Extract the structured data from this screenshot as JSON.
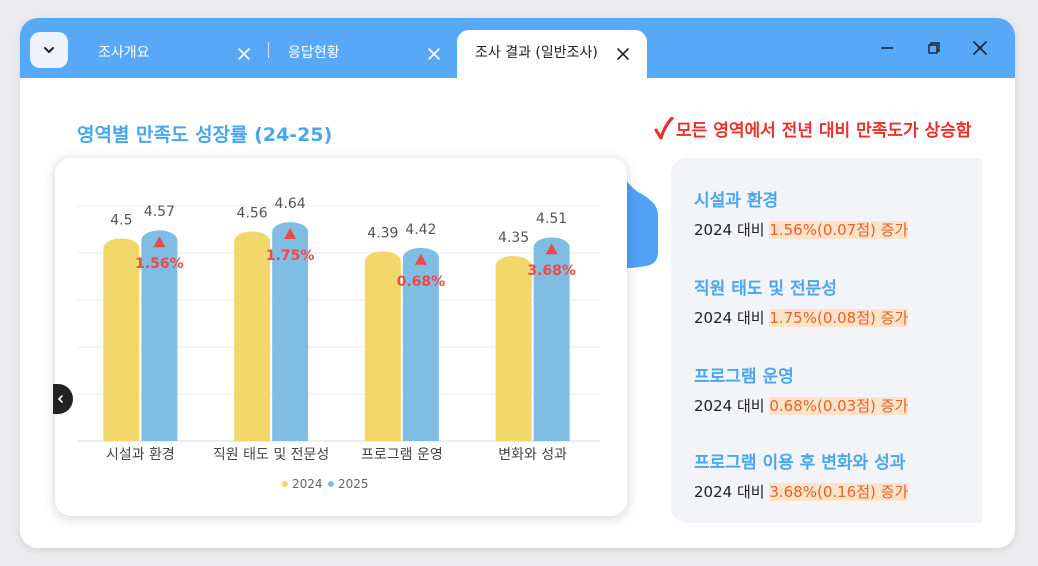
{
  "tabs": [
    {
      "label": "조사개요",
      "active": false
    },
    {
      "label": "응답현황",
      "active": false
    },
    {
      "label": "조사 결과 (일반조사)",
      "active": true
    }
  ],
  "chart_data": {
    "type": "bar",
    "title": "영역별 만족도 성장률 (24-25)",
    "categories": [
      "시설과 환경",
      "직원 태도 및 전문성",
      "프로그램 운영",
      "변화와 성과"
    ],
    "series": [
      {
        "name": "2024",
        "values": [
          4.5,
          4.56,
          4.39,
          4.35
        ],
        "value_labels": [
          "4.5",
          "4.56",
          "4.39",
          "4.35"
        ],
        "color": "#f2d86a"
      },
      {
        "name": "2025",
        "values": [
          4.57,
          4.64,
          4.42,
          4.51
        ],
        "value_labels": [
          "4.57",
          "4.64",
          "4.42",
          "4.51"
        ],
        "color": "#7fbde3"
      }
    ],
    "growth_labels": [
      "1.56%",
      "1.75%",
      "0.68%",
      "3.68%"
    ],
    "growth_color": "#ef4a48",
    "ylim": [
      0,
      5
    ],
    "grid": true,
    "legend_position": "bottom-center"
  },
  "summary": {
    "headline": "모든 영역에서 전년 대비 만족도가 상승함",
    "items": [
      {
        "title": "시설과 환경",
        "prefix": "2024 대비 ",
        "highlight": "1.56%(0.07점) 증가"
      },
      {
        "title": "직원 태도 및 전문성",
        "prefix": "2024 대비 ",
        "highlight": "1.75%(0.08점) 증가"
      },
      {
        "title": "프로그램 운영",
        "prefix": "2024 대비 ",
        "highlight": "0.68%(0.03점) 증가"
      },
      {
        "title": "프로그램 이용 후 변화와 성과",
        "prefix": "2024 대비 ",
        "highlight": "3.68%(0.16점) 증가"
      }
    ]
  },
  "colors": {
    "titlebar": "#57a9f8",
    "accent": "#4aa6ef",
    "alert": "#e8332c"
  },
  "icons": [
    "chevron-down-icon",
    "close-icon",
    "minimize-icon",
    "restore-icon",
    "checkmark-icon",
    "chevron-left-icon"
  ]
}
